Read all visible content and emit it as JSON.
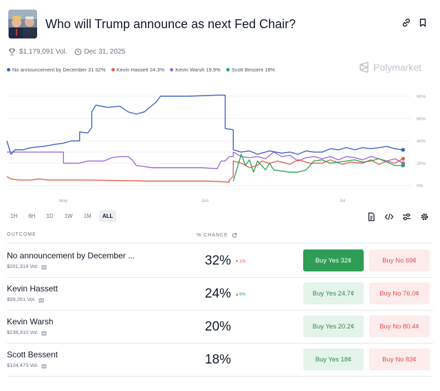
{
  "market": {
    "title": "Who will Trump announce as next Fed Chair?",
    "volume": "$1,179,091 Vol.",
    "end_date": "Dec 31, 2025"
  },
  "brand": "Polymarket",
  "legend": [
    {
      "label": "No announcement by December 31 32%",
      "color": "#3b63c9"
    },
    {
      "label": "Kevin Hassett 24.3%",
      "color": "#e2614d"
    },
    {
      "label": "Kevin Warsh 19.9%",
      "color": "#9b6bd6"
    },
    {
      "label": "Scott Bessent 18%",
      "color": "#2fa35a"
    }
  ],
  "time_ranges": [
    "1H",
    "6H",
    "1D",
    "1W",
    "1M",
    "ALL"
  ],
  "active_range": "ALL",
  "table_headers": {
    "outcome": "OUTCOME",
    "chance": "% CHANCE"
  },
  "outcomes": [
    {
      "name": "No announcement by December ...",
      "volume": "$201,314 Vol.",
      "chance": "32%",
      "delta": "▾ 1%",
      "delta_dir": "down",
      "buy_yes": "Buy Yes 32¢",
      "buy_no": "Buy No 69¢",
      "primary": true
    },
    {
      "name": "Kevin Hassett",
      "volume": "$99,261 Vol.",
      "chance": "24%",
      "delta": "▴ 6%",
      "delta_dir": "up",
      "buy_yes": "Buy Yes 24.7¢",
      "buy_no": "Buy No 76.0¢",
      "primary": false
    },
    {
      "name": "Kevin Warsh",
      "volume": "$236,310 Vol.",
      "chance": "20%",
      "delta": "",
      "delta_dir": "",
      "buy_yes": "Buy Yes 20.2¢",
      "buy_no": "Buy No 80.4¢",
      "primary": false
    },
    {
      "name": "Scott Bessent",
      "volume": "$104,473 Vol.",
      "chance": "18%",
      "delta": "",
      "delta_dir": "",
      "buy_yes": "Buy Yes 18¢",
      "buy_no": "Buy No 83¢",
      "primary": false
    }
  ],
  "chart_data": {
    "type": "line",
    "x_ticks": [
      "May",
      "Jun",
      "Jul"
    ],
    "y_ticks": [
      "80%",
      "60%",
      "40%",
      "20%",
      "0%"
    ],
    "ylim": [
      0,
      80
    ],
    "grid": true,
    "reference_y": 30,
    "series": [
      {
        "name": "No announcement by December 31",
        "color": "#3b63c9",
        "values": [
          [
            0,
            40
          ],
          [
            1,
            28
          ],
          [
            2,
            32
          ],
          [
            4,
            32
          ],
          [
            6,
            34
          ],
          [
            9,
            35
          ],
          [
            12,
            37
          ],
          [
            14,
            38
          ],
          [
            16,
            40
          ],
          [
            18,
            40
          ],
          [
            18,
            48
          ],
          [
            20,
            47
          ],
          [
            21,
            52
          ],
          [
            21,
            66
          ],
          [
            22,
            72
          ],
          [
            25,
            70
          ],
          [
            28,
            71
          ],
          [
            30,
            66
          ],
          [
            32,
            64
          ],
          [
            34,
            66
          ],
          [
            36,
            72
          ],
          [
            37,
            75
          ],
          [
            38,
            80
          ],
          [
            45,
            80
          ],
          [
            52,
            81
          ],
          [
            54,
            81
          ],
          [
            54,
            51
          ],
          [
            56,
            50
          ],
          [
            56,
            32
          ],
          [
            58,
            30
          ],
          [
            60,
            31
          ],
          [
            62,
            28
          ],
          [
            65,
            31
          ],
          [
            68,
            29
          ],
          [
            70,
            30
          ],
          [
            72,
            28
          ],
          [
            74,
            31
          ],
          [
            76,
            30
          ],
          [
            78,
            30
          ],
          [
            80,
            33
          ],
          [
            82,
            32
          ],
          [
            84,
            34
          ],
          [
            86,
            32
          ],
          [
            88,
            34
          ],
          [
            90,
            33
          ],
          [
            92,
            34
          ],
          [
            94,
            35
          ],
          [
            96,
            33
          ],
          [
            98,
            32
          ]
        ]
      },
      {
        "name": "Kevin Hassett",
        "color": "#e2614d",
        "values": [
          [
            0,
            8
          ],
          [
            1,
            6
          ],
          [
            3,
            5
          ],
          [
            6,
            5
          ],
          [
            8,
            6
          ],
          [
            10,
            5
          ],
          [
            20,
            5
          ],
          [
            35,
            4
          ],
          [
            50,
            4
          ],
          [
            55,
            3
          ],
          [
            55,
            5
          ],
          [
            56,
            8
          ],
          [
            56,
            22
          ],
          [
            58,
            20
          ],
          [
            60,
            16
          ],
          [
            62,
            18
          ],
          [
            63,
            22
          ],
          [
            65,
            20
          ],
          [
            67,
            22
          ],
          [
            70,
            19
          ],
          [
            72,
            23
          ],
          [
            75,
            20
          ],
          [
            78,
            20
          ],
          [
            80,
            23
          ],
          [
            83,
            19
          ],
          [
            85,
            21
          ],
          [
            88,
            20
          ],
          [
            90,
            23
          ],
          [
            92,
            19
          ],
          [
            94,
            22
          ],
          [
            96,
            20
          ],
          [
            98,
            24
          ]
        ]
      },
      {
        "name": "Kevin Warsh",
        "color": "#9b6bd6",
        "values": [
          [
            0,
            30
          ],
          [
            4,
            30
          ],
          [
            8,
            30
          ],
          [
            10,
            30
          ],
          [
            12,
            30
          ],
          [
            14,
            30
          ],
          [
            14,
            20
          ],
          [
            18,
            20
          ],
          [
            20,
            22
          ],
          [
            24,
            22
          ],
          [
            26,
            25
          ],
          [
            28,
            26
          ],
          [
            30,
            26
          ],
          [
            31,
            23
          ],
          [
            32,
            18
          ],
          [
            34,
            17
          ],
          [
            36,
            16
          ],
          [
            38,
            16
          ],
          [
            44,
            16
          ],
          [
            48,
            16
          ],
          [
            52,
            15
          ],
          [
            53,
            22
          ],
          [
            54,
            22
          ],
          [
            55,
            26
          ],
          [
            56,
            26
          ],
          [
            56,
            30
          ],
          [
            58,
            26
          ],
          [
            60,
            25
          ],
          [
            62,
            26
          ],
          [
            64,
            24
          ],
          [
            66,
            30
          ],
          [
            68,
            26
          ],
          [
            70,
            27
          ],
          [
            72,
            22
          ],
          [
            74,
            25
          ],
          [
            76,
            26
          ],
          [
            78,
            24
          ],
          [
            80,
            26
          ],
          [
            82,
            23
          ],
          [
            84,
            26
          ],
          [
            86,
            25
          ],
          [
            88,
            23
          ],
          [
            90,
            26
          ],
          [
            92,
            24
          ],
          [
            94,
            22
          ],
          [
            96,
            24
          ],
          [
            98,
            20
          ]
        ]
      },
      {
        "name": "Scott Bessent",
        "color": "#2fa35a",
        "values": [
          [
            56,
            4
          ],
          [
            58,
            28
          ],
          [
            59,
            18
          ],
          [
            60,
            23
          ],
          [
            61,
            12
          ],
          [
            62,
            22
          ],
          [
            64,
            14
          ],
          [
            65,
            20
          ],
          [
            66,
            14
          ],
          [
            68,
            13
          ],
          [
            70,
            12
          ],
          [
            72,
            12
          ],
          [
            74,
            14
          ],
          [
            76,
            22
          ],
          [
            78,
            23
          ],
          [
            80,
            20
          ],
          [
            82,
            21
          ],
          [
            84,
            22
          ],
          [
            86,
            23
          ],
          [
            88,
            21
          ],
          [
            90,
            22
          ],
          [
            92,
            24
          ],
          [
            94,
            21
          ],
          [
            96,
            18
          ],
          [
            98,
            18
          ]
        ]
      }
    ]
  }
}
